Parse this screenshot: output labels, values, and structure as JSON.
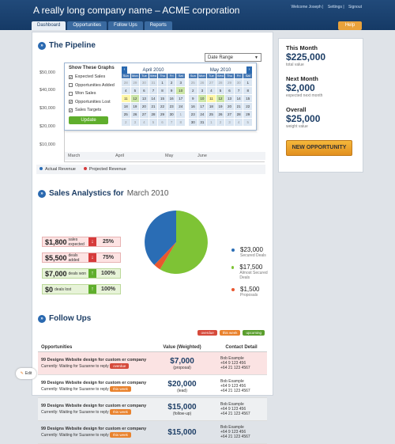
{
  "header": {
    "company": "A really long company name – ACME corporation",
    "links": [
      "Welcome Joseph",
      "Settings",
      "Signout"
    ],
    "tabs": [
      "Dashboard",
      "Opportunities",
      "Follow Ups",
      "Reports"
    ],
    "help": "Help"
  },
  "pipeline": {
    "title": "The Pipeline",
    "date_range": "Date Range",
    "y_labels": [
      "$50,000",
      "$40,000",
      "$30,000",
      "$20,000",
      "$10,000"
    ],
    "x_labels": [
      "March",
      "April",
      "May",
      "June"
    ],
    "legend": [
      "Actual Revenue",
      "Projected Revenue"
    ],
    "graphs_title": "Show These Graphs",
    "graphs": [
      "Expected Sales",
      "Opportunities Added",
      "Won Sales",
      "Opportunities Lost",
      "Sales Targets"
    ],
    "graphs_checked": [
      true,
      false,
      false,
      true,
      true
    ],
    "update": "Update",
    "cal1_title": "April 2010",
    "cal2_title": "May 2010",
    "days": [
      "Sun",
      "Mon",
      "Tue",
      "Wed",
      "Thu",
      "Fri",
      "Sat"
    ]
  },
  "sales": {
    "title": "Sales Analystics for",
    "period": "March 2010",
    "rows": [
      {
        "amount": "$1,800",
        "label": "sales expected",
        "pct": "25%",
        "dir": "down"
      },
      {
        "amount": "$5,500",
        "label": "deals added",
        "pct": "75%",
        "dir": "down"
      },
      {
        "amount": "$7,000",
        "label": "deals won",
        "pct": "100%",
        "dir": "up"
      },
      {
        "amount": "$0",
        "label": "deals lost",
        "pct": "100%",
        "dir": "up"
      }
    ],
    "pie": [
      {
        "value": "$23,000",
        "label": "Secured Deals",
        "color": "#2a6db5"
      },
      {
        "value": "$17,500",
        "label": "Almost Secured Deals",
        "color": "#7ec335"
      },
      {
        "value": "$1,500",
        "label": "Proposals",
        "color": "#e9572f"
      }
    ]
  },
  "followups": {
    "title": "Follow Ups",
    "badges": [
      "overdue",
      "this week",
      "upcoming"
    ],
    "headers": [
      "Opportunities",
      "Value (Weighted)",
      "Contact Detail"
    ],
    "rows": [
      {
        "title": "99 Designs Website design for custom er company",
        "status": "Currently: Waiting for Suzanne to reply",
        "badge": "overdue",
        "amount": "$7,000",
        "note": "(proposal)",
        "contact": "Bob Example",
        "phone1": "+64 9 123 456",
        "phone2": "+64 21 123 4567"
      },
      {
        "title": "99 Designs Website design for custom er company",
        "status": "Currently: Waiting for Suzanne to reply",
        "badge": "this week",
        "amount": "$20,000",
        "note": "(lead)",
        "contact": "Bob Example",
        "phone1": "+64 9 123 456",
        "phone2": "+64 21 123 4567"
      },
      {
        "title": "99 Designs Website design for custom er company",
        "status": "Currently: Waiting for Suzanne to reply",
        "badge": "this week",
        "amount": "$15,000",
        "note": "(follow-up)",
        "contact": "Bob Example",
        "phone1": "+64 9 123 456",
        "phone2": "+64 21 123 4567"
      },
      {
        "title": "99 Designs Website design for custom er company",
        "status": "Currently: Waiting for Suzanne to reply",
        "badge": "this week",
        "amount": "$15,000",
        "note": "",
        "contact": "Bob Example",
        "phone1": "+64 9 123 456",
        "phone2": "+64 21 123 4567"
      }
    ]
  },
  "side": {
    "month_title": "This Month",
    "total": "$225,000",
    "total_sub": "total value",
    "next_title": "Next Month",
    "expected": "$2,000",
    "expected_sub": "expected next month",
    "overall_title": "Overall",
    "weight": "$25,000",
    "weight_sub": "weight value",
    "new_opp": "NEW OPPORTUNITY"
  },
  "edit": "Edit"
}
